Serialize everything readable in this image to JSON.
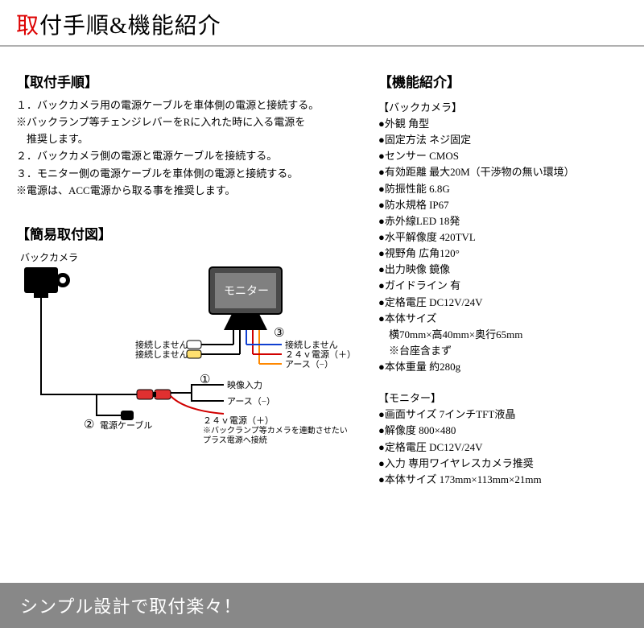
{
  "title_accent": "取",
  "title_rest": "付手順&機能紹介",
  "install_hdr": "【取付手順】",
  "install_steps": [
    "１．バックカメラ用の電源ケーブルを車体側の電源と接続する。",
    "※バックランプ等チェンジレバーをRに入れた時に入る電源を",
    "　推奨します。",
    "２．バックカメラ側の電源と電源ケーブルを接続する。",
    "３．モニター側の電源ケーブルを車体側の電源と接続する。",
    "※電源は、ACC電源から取る事を推奨します。"
  ],
  "diagram_hdr": "【簡易取付図】",
  "feature_hdr": "【機能紹介】",
  "camera_sub": "【バックカメラ】",
  "camera_specs": [
    "●外観 角型",
    "●固定方法 ネジ固定",
    "●センサー CMOS",
    "●有効距離 最大20M（干渉物の無い環境）",
    "●防振性能 6.8G",
    "●防水規格 IP67",
    "●赤外線LED 18発",
    "●水平解像度 420TVL",
    "●視野角 広角120°",
    "●出力映像 鏡像",
    "●ガイドライン 有",
    "●定格電圧 DC12V/24V",
    "●本体サイズ",
    "　横70mm×高40mm×奥行65mm",
    "　※台座含まず",
    "●本体重量 約280g"
  ],
  "monitor_sub": "【モニター】",
  "monitor_specs": [
    "●画面サイズ 7インチTFT液晶",
    "●解像度 800×480",
    "●定格電圧 DC12V/24V",
    "●入力 専用ワイヤレスカメラ推奨",
    "●本体サイズ 173mm×113mm×21mm"
  ],
  "footer": "シンプル設計で取付楽々！",
  "diagram": {
    "camera_label": "バックカメラ",
    "monitor_label": "モニター",
    "no_connect": "接続しません",
    "sig24v": "２４ｖ電源（＋）",
    "earth": "アース（−）",
    "video_in": "映像入力",
    "power_cable": "電源ケーブル",
    "backlamp_note1": "※バックランプ等カメラを連動させたい",
    "backlamp_note2": "プラス電源へ接続",
    "num1": "①",
    "num2": "②",
    "num3": "③",
    "colors": {
      "black": "#000000",
      "red": "#d00000",
      "orange": "#ff8800",
      "blue": "#1040d0",
      "yellow_fill": "#ffe070",
      "red_fill": "#e03030",
      "white_fill": "#ffffff",
      "gray_fill": "#808080",
      "monitor_fill": "#4a4a4a"
    }
  }
}
